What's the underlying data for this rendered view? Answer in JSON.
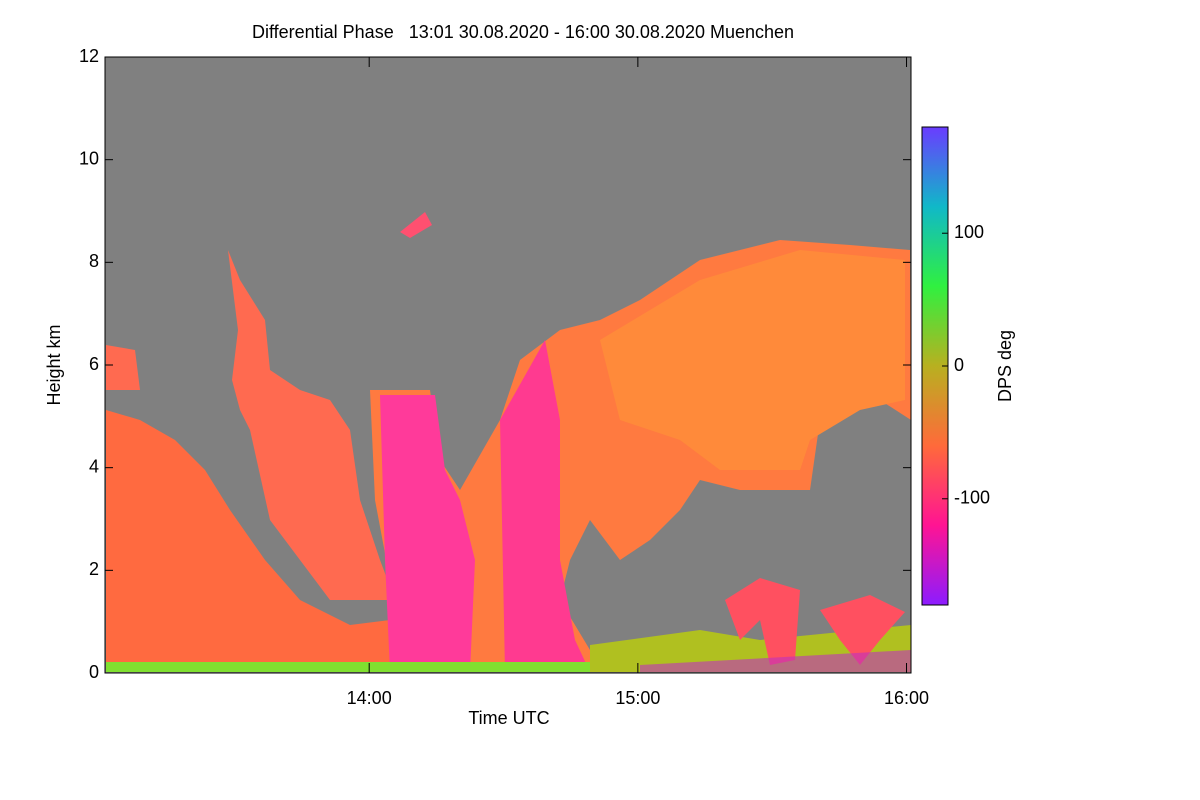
{
  "chart_data": {
    "type": "heatmap",
    "title": "Differential Phase   13:01 30.08.2020 - 16:00 30.08.2020 Muenchen",
    "x_label": "Time UTC",
    "y_label": "Height km",
    "colorbar_label": "DPS deg",
    "xlim": [
      781,
      961
    ],
    "xticks": [
      {
        "value": 840,
        "label": "14:00"
      },
      {
        "value": 900,
        "label": "15:00"
      },
      {
        "value": 960,
        "label": "16:00"
      }
    ],
    "ylim": [
      0,
      12
    ],
    "yticks": [
      0,
      2,
      4,
      6,
      8,
      10,
      12
    ],
    "clim": [
      -180,
      180
    ],
    "cticks": [
      -100,
      0,
      100
    ],
    "colormap": [
      "#8c1cff",
      "#ff1493",
      "#ff6a3a",
      "#b8b020",
      "#30f040",
      "#10b8c8",
      "#6a3cff"
    ],
    "background": "#808080"
  }
}
